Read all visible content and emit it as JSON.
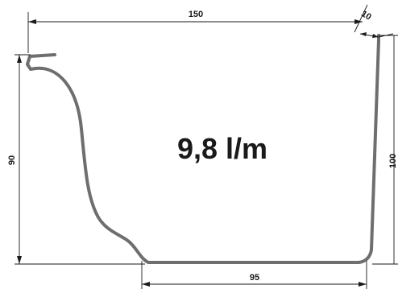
{
  "dimensions": {
    "top_width": "150",
    "lip": "10",
    "left_height": "90",
    "right_height": "100",
    "bottom_width": "95"
  },
  "capacity_label": "9,8 l/m"
}
